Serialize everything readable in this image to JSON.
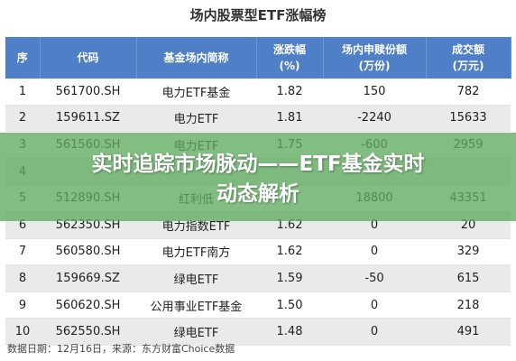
{
  "title": "场内股票型ETF涨幅榜",
  "table": {
    "headers": [
      "序",
      "代码",
      "基金场内简称",
      "涨跌幅\n(%)",
      "场内申赎份额\n(万份)",
      "成交额\n(万元)"
    ],
    "rows": [
      [
        "1",
        "561700.SH",
        "电力ETF基金",
        "1.82",
        "150",
        "782"
      ],
      [
        "2",
        "159611.SZ",
        "电力ETF",
        "1.81",
        "-2240",
        "15633"
      ],
      [
        "3",
        "561560.SH",
        "电力ETF",
        "1.75",
        "-600",
        "2959"
      ],
      [
        "4",
        "",
        "",
        "",
        "",
        ""
      ],
      [
        "5",
        "512890.SH",
        "红利低",
        "",
        "18800",
        "43351"
      ],
      [
        "6",
        "562350.SH",
        "电力指数ETF",
        "1.62",
        "0",
        "20"
      ],
      [
        "7",
        "560580.SH",
        "电力ETF南方",
        "1.62",
        "0",
        "329"
      ],
      [
        "8",
        "159669.SZ",
        "绿电ETF",
        "1.59",
        "-50",
        "615"
      ],
      [
        "9",
        "560620.SH",
        "公用事业ETF基金",
        "1.50",
        "0",
        "218"
      ],
      [
        "10",
        "562550.SH",
        "绿电ETF",
        "1.48",
        "0",
        "491"
      ]
    ]
  },
  "source": "数据日期：12月16日，来源：东方财富Choice数据",
  "overlay_title": "实时追踪市场脉动——ETF基金实时动态解析"
}
